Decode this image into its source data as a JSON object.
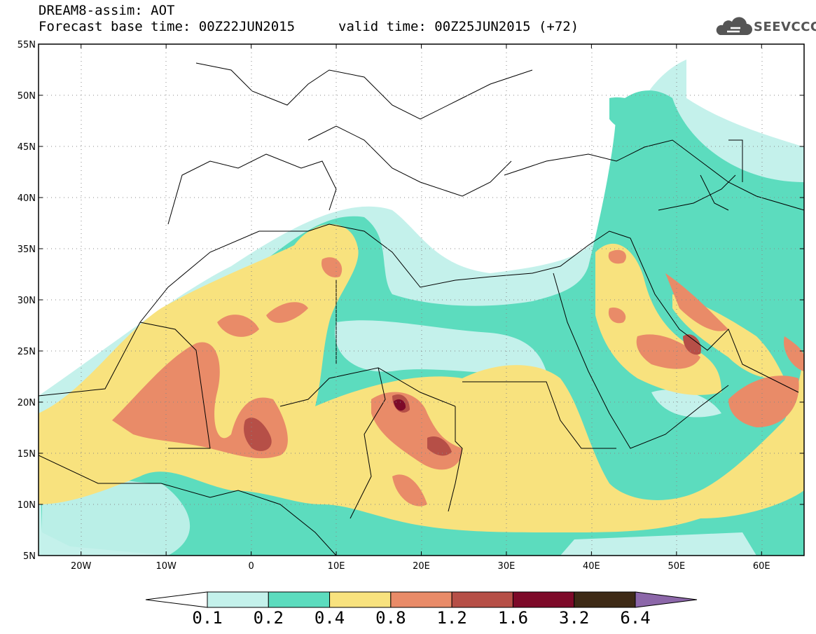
{
  "header": {
    "line1": "DREAM8-assim: AOT",
    "base_time": "Forecast base time: 00Z22JUN2015",
    "valid_time": "valid time: 00Z25JUN2015 (+72)"
  },
  "logo": {
    "text": "SEEVCCC",
    "icon": "cloud-logo-icon"
  },
  "map": {
    "lon_range": [
      -25,
      65
    ],
    "lat_range": [
      5,
      55
    ],
    "lat_ticks": [
      "5N",
      "10N",
      "15N",
      "20N",
      "25N",
      "30N",
      "35N",
      "40N",
      "45N",
      "50N",
      "55N"
    ],
    "lon_ticks": [
      "20W",
      "10W",
      "0",
      "10E",
      "20E",
      "30E",
      "40E",
      "50E",
      "60E"
    ],
    "background_color": "#ffffff",
    "coast_color": "#000000"
  },
  "legend": {
    "labels": [
      "0.1",
      "0.2",
      "0.4",
      "0.8",
      "1.2",
      "1.6",
      "3.2",
      "6.4"
    ],
    "colors": [
      "#ffffff",
      "#c4f1eb",
      "#5cdcbe",
      "#f8e27e",
      "#e98b68",
      "#b64f47",
      "#7d0a29",
      "#3e2a16",
      "#8c67a9"
    ]
  }
}
